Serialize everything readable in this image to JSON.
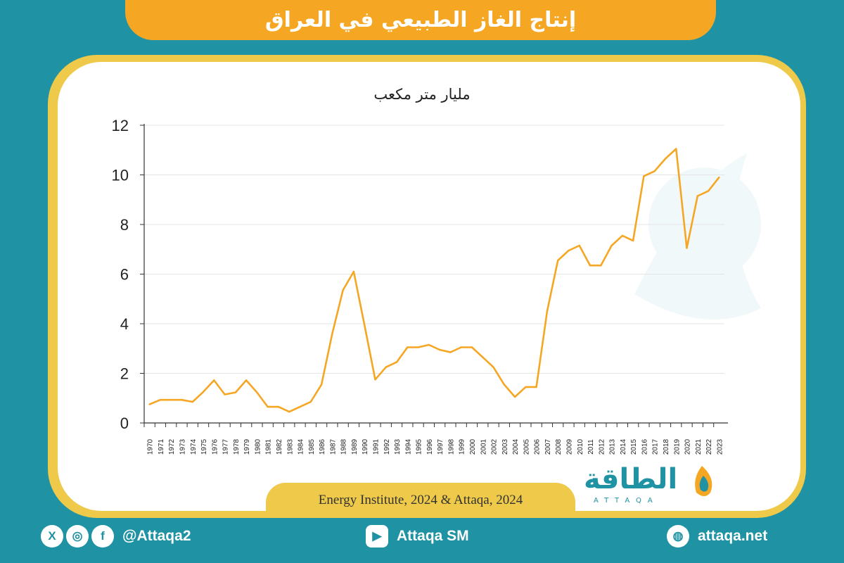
{
  "title": "إنتاج الغاز الطبيعي في العراق",
  "source": "Energy Institute, 2024 & Attaqa, 2024",
  "logo": {
    "arabic": "الطاقة",
    "latin": "ATTAQA"
  },
  "footer": {
    "handle": "@Attaqa2",
    "youtube": "Attaqa SM",
    "website": "attaqa.net",
    "social_icons": [
      "x-icon",
      "instagram-icon",
      "facebook-icon"
    ]
  },
  "colors": {
    "accent": "#f5a623",
    "teal": "#1f93a3",
    "frame": "#eec94a",
    "line": "#f5a623"
  },
  "chart_data": {
    "type": "line",
    "ylabel": "مليار متر مكعب",
    "ylim": [
      0,
      12
    ],
    "yticks": [
      0,
      2,
      4,
      6,
      8,
      10,
      12
    ],
    "grid": true,
    "x": [
      "1970",
      "1971",
      "1972",
      "1973",
      "1974",
      "1975",
      "1976",
      "1977",
      "1978",
      "1979",
      "1980",
      "1981",
      "1982",
      "1983",
      "1984",
      "1985",
      "1986",
      "1987",
      "1988",
      "1989",
      "1990",
      "1991",
      "1992",
      "1993",
      "1994",
      "1995",
      "1996",
      "1997",
      "1998",
      "1999",
      "2000",
      "2001",
      "2002",
      "2003",
      "2004",
      "2005",
      "2006",
      "2007",
      "2008",
      "2009",
      "2010",
      "2011",
      "2012",
      "2013",
      "2014",
      "2015",
      "2016",
      "2017",
      "2018",
      "2019",
      "2020",
      "2021",
      "2022",
      "2023"
    ],
    "values": [
      0.75,
      0.93,
      0.93,
      0.93,
      0.85,
      1.25,
      1.72,
      1.15,
      1.23,
      1.72,
      1.23,
      0.65,
      0.65,
      0.45,
      0.65,
      0.85,
      1.55,
      3.6,
      5.35,
      6.1,
      3.95,
      1.75,
      2.25,
      2.45,
      3.05,
      3.05,
      3.15,
      2.95,
      2.85,
      3.05,
      3.05,
      2.65,
      2.25,
      1.55,
      1.05,
      1.45,
      1.45,
      4.5,
      6.55,
      6.95,
      7.15,
      6.35,
      6.35,
      7.15,
      7.55,
      7.35,
      9.95,
      10.15,
      10.65,
      11.05,
      7.05,
      9.15,
      9.35,
      9.9
    ]
  }
}
